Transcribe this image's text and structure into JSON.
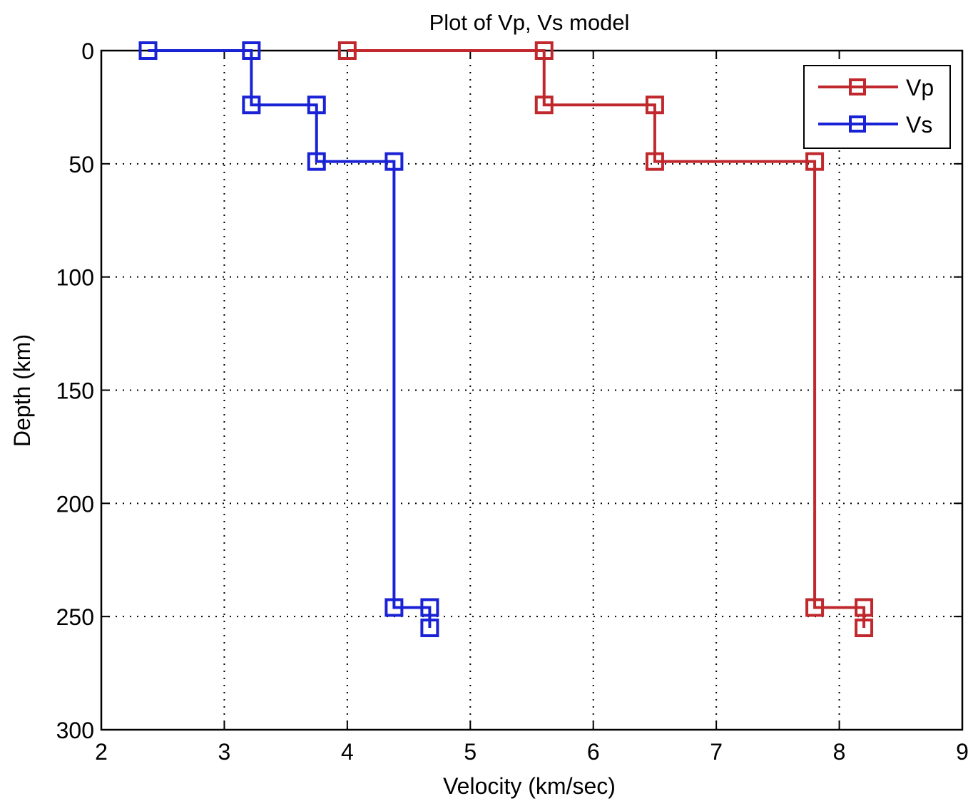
{
  "chart_data": {
    "type": "line",
    "title": "Plot of Vp, Vs  model",
    "xlabel": "Velocity (km/sec)",
    "ylabel": "Depth (km)",
    "xlim": [
      2,
      9
    ],
    "ylim": [
      0,
      300
    ],
    "y_reversed": true,
    "grid": true,
    "legend_position": "top-right",
    "xticks": [
      "2",
      "3",
      "4",
      "5",
      "6",
      "7",
      "8",
      "9"
    ],
    "yticks": [
      "0",
      "50",
      "100",
      "150",
      "200",
      "250",
      "300"
    ],
    "series": [
      {
        "name": "Vp",
        "color": "#c0282d",
        "marker": "square",
        "points": [
          {
            "x": 4.0,
            "y": 0
          },
          {
            "x": 5.6,
            "y": 0
          },
          {
            "x": 5.6,
            "y": 24
          },
          {
            "x": 6.5,
            "y": 24
          },
          {
            "x": 6.5,
            "y": 49
          },
          {
            "x": 7.8,
            "y": 49
          },
          {
            "x": 7.8,
            "y": 246
          },
          {
            "x": 8.2,
            "y": 246
          },
          {
            "x": 8.2,
            "y": 255
          }
        ]
      },
      {
        "name": "Vs",
        "color": "#1a22d6",
        "marker": "square",
        "points": [
          {
            "x": 2.38,
            "y": 0
          },
          {
            "x": 3.22,
            "y": 0
          },
          {
            "x": 3.22,
            "y": 24
          },
          {
            "x": 3.75,
            "y": 24
          },
          {
            "x": 3.75,
            "y": 49
          },
          {
            "x": 4.38,
            "y": 49
          },
          {
            "x": 4.38,
            "y": 246
          },
          {
            "x": 4.67,
            "y": 246
          },
          {
            "x": 4.67,
            "y": 255
          }
        ]
      }
    ]
  }
}
